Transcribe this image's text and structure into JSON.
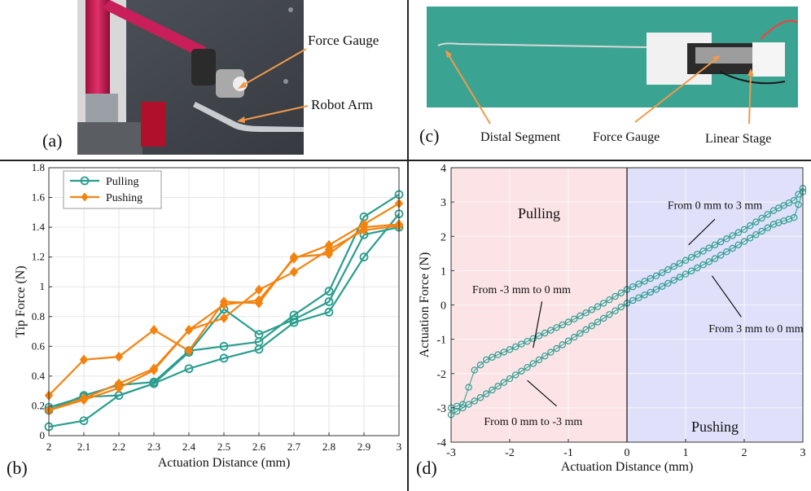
{
  "panels": {
    "a": {
      "label": "(a)",
      "callouts": [
        "Force Gauge",
        "Robot Arm"
      ]
    },
    "c": {
      "label": "(c)",
      "callouts": [
        "Distal Segment",
        "Force Gauge",
        "Linear Stage"
      ]
    },
    "b": {
      "label": "(b)"
    },
    "d": {
      "label": "(d)"
    }
  },
  "colors": {
    "pulling": "#2a9d8f",
    "pushing": "#f4820f",
    "pull_region": "#fbe3e6",
    "push_region": "#e0e0fa",
    "arrow": "#f2994a"
  },
  "chart_data": [
    {
      "type": "line",
      "panel": "b",
      "xlabel": "Actuation Distance (mm)",
      "ylabel": "Tip Force (N)",
      "xlim": [
        2,
        3
      ],
      "ylim": [
        0,
        1.8
      ],
      "xticks": [
        "2",
        "2.1",
        "2.2",
        "2.3",
        "2.4",
        "2.5",
        "2.6",
        "2.7",
        "2.8",
        "2.9",
        "3"
      ],
      "yticks": [
        "0",
        "0.2",
        "0.4",
        "0.6",
        "0.8",
        "1",
        "1.2",
        "1.4",
        "1.6",
        "1.8"
      ],
      "legend_position": "top-left",
      "x": [
        2.0,
        2.1,
        2.2,
        2.3,
        2.4,
        2.5,
        2.6,
        2.7,
        2.8,
        2.9,
        3.0
      ],
      "series": [
        {
          "name": "Pulling",
          "group": "pulling",
          "values": [
            0.06,
            0.1,
            0.27,
            0.35,
            0.45,
            0.52,
            0.58,
            0.76,
            0.83,
            1.2,
            1.49
          ]
        },
        {
          "group": "pulling",
          "values": [
            0.17,
            0.27,
            0.34,
            0.36,
            0.57,
            0.6,
            0.63,
            0.81,
            0.97,
            1.47,
            1.62
          ]
        },
        {
          "group": "pulling",
          "values": [
            0.19,
            0.26,
            0.27,
            0.35,
            0.56,
            0.85,
            0.68,
            0.78,
            0.9,
            1.35,
            1.4
          ]
        },
        {
          "name": "Pushing",
          "group": "pushing",
          "values": [
            0.17,
            0.24,
            0.32,
            0.44,
            0.71,
            0.79,
            0.98,
            1.1,
            1.25,
            1.38,
            1.41
          ]
        },
        {
          "group": "pushing",
          "values": [
            0.27,
            0.51,
            0.53,
            0.71,
            0.57,
            0.9,
            0.89,
            1.2,
            1.22,
            1.4,
            1.42
          ]
        },
        {
          "group": "pushing",
          "values": [
            0.17,
            0.25,
            0.35,
            0.45,
            0.71,
            0.88,
            0.91,
            1.19,
            1.28,
            1.42,
            1.56
          ]
        }
      ]
    },
    {
      "type": "scatter",
      "panel": "d",
      "xlabel": "Actuation Distance (mm)",
      "ylabel": "Actuation Force (N)",
      "xlim": [
        -3,
        3
      ],
      "ylim": [
        -4,
        4
      ],
      "xticks": [
        "-3",
        "-2",
        "-1",
        "0",
        "1",
        "2",
        "3"
      ],
      "yticks": [
        "-4",
        "-3",
        "-2",
        "-1",
        "0",
        "1",
        "2",
        "3",
        "4"
      ],
      "regions": [
        {
          "label": "Pulling",
          "x_range": [
            -3,
            0
          ],
          "group": "pull_region"
        },
        {
          "label": "Pushing",
          "x_range": [
            0,
            3
          ],
          "group": "push_region"
        }
      ],
      "annotations": [
        {
          "text": "From 0 mm to 3 mm",
          "x": 1.5,
          "y": 2.8
        },
        {
          "text": "From -3 mm to 0 mm",
          "x": -1.8,
          "y": 0.35
        },
        {
          "text": "From 3 mm to 0 mm",
          "x": 2.2,
          "y": -0.8
        },
        {
          "text": "From 0 mm to -3 mm",
          "x": -1.6,
          "y": -3.5
        }
      ],
      "curves": [
        {
          "path": "upper-hysteresis",
          "points": [
            [
              -3,
              -3.0
            ],
            [
              -2.8,
              -2.9
            ],
            [
              -2.6,
              -1.9
            ],
            [
              -2.4,
              -1.6
            ],
            [
              -2.0,
              -1.3
            ],
            [
              -1.5,
              -0.9
            ],
            [
              -1.0,
              -0.5
            ],
            [
              -0.5,
              -0.05
            ],
            [
              0,
              0.45
            ]
          ]
        },
        {
          "path": "lower-hysteresis",
          "points": [
            [
              -3,
              -3.2
            ],
            [
              -2.5,
              -2.7
            ],
            [
              -2.0,
              -2.15
            ],
            [
              -1.5,
              -1.6
            ],
            [
              -1.0,
              -1.05
            ],
            [
              -0.5,
              -0.5
            ],
            [
              0,
              0.05
            ]
          ]
        },
        {
          "path": "push-upper",
          "points": [
            [
              0,
              0.45
            ],
            [
              0.5,
              0.85
            ],
            [
              1.0,
              1.3
            ],
            [
              1.5,
              1.75
            ],
            [
              2.0,
              2.2
            ],
            [
              2.5,
              2.75
            ],
            [
              2.85,
              3.05
            ],
            [
              3,
              3.4
            ]
          ]
        },
        {
          "path": "push-lower",
          "points": [
            [
              0,
              0.05
            ],
            [
              0.5,
              0.45
            ],
            [
              1.0,
              0.9
            ],
            [
              1.5,
              1.35
            ],
            [
              2.0,
              1.85
            ],
            [
              2.5,
              2.35
            ],
            [
              2.85,
              2.55
            ],
            [
              3,
              3.3
            ]
          ]
        }
      ]
    }
  ]
}
